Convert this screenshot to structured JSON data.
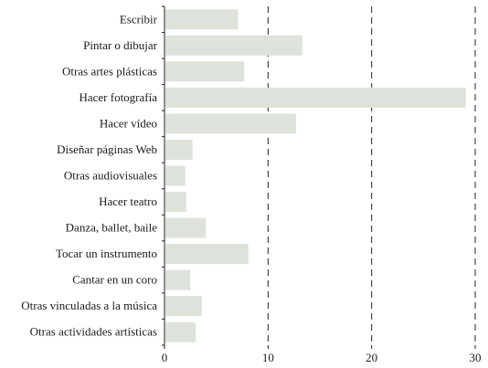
{
  "chart_data": {
    "type": "bar",
    "orientation": "horizontal",
    "title": "",
    "xlabel": "",
    "ylabel": "",
    "categories": [
      "Escribir",
      "Pintar o dibujar",
      "Otras artes plásticas",
      "Hacer fotografía",
      "Hacer  vídeo",
      "Diseñar páginas  Web",
      "Otras audiovisuales",
      "Hacer teatro",
      "Danza, ballet,  baile",
      "Tocar un instrumento",
      "Cantar en un coro",
      "Otras vinculadas a la música",
      "Otras actividades artísticas"
    ],
    "values": [
      7.1,
      13.3,
      7.7,
      29.1,
      12.7,
      2.7,
      2.0,
      2.1,
      4.0,
      8.1,
      2.5,
      3.6,
      3.0
    ],
    "xlim": [
      0,
      30
    ],
    "xticks": [
      0,
      10,
      20,
      30
    ],
    "grid": "vertical-dashed",
    "legend": "none",
    "bar_color": "#dde3da"
  }
}
